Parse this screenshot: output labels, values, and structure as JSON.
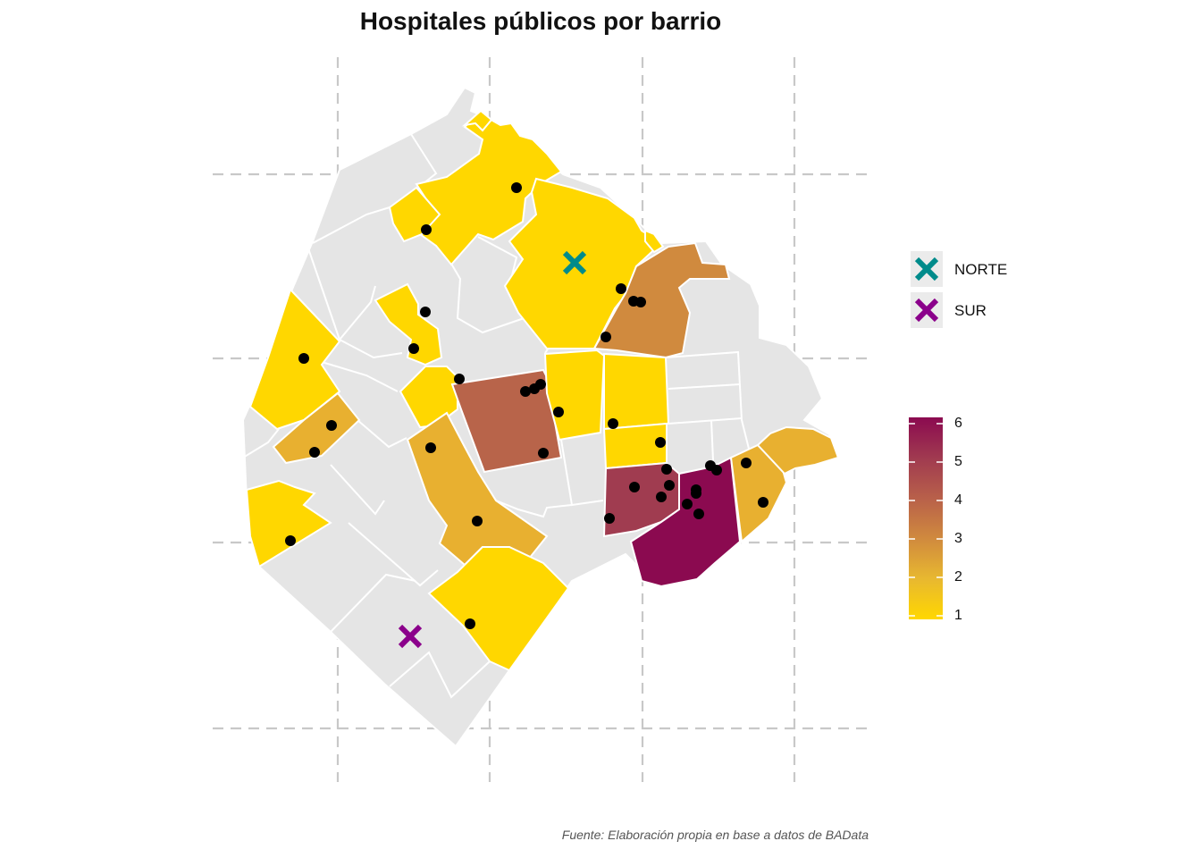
{
  "title": "Hospitales públicos por barrio",
  "caption": "Fuente: Elaboración propia en base a datos de BAData",
  "legend": {
    "markers": [
      {
        "label": "NORTE",
        "color": "#008b8b",
        "icon": "x-mark-icon"
      },
      {
        "label": "SUR",
        "color": "#8b008b",
        "icon": "x-mark-icon"
      }
    ],
    "colorbar": {
      "ticks": [
        "1",
        "2",
        "3",
        "4",
        "5",
        "6"
      ],
      "min_color": "#ffd700",
      "max_color": "#8b0a50"
    }
  },
  "colors": {
    "no_data": "#e5e5e5",
    "border": "#ffffff",
    "grid": "#c8c8c8",
    "hospital_point": "#000000"
  }
}
